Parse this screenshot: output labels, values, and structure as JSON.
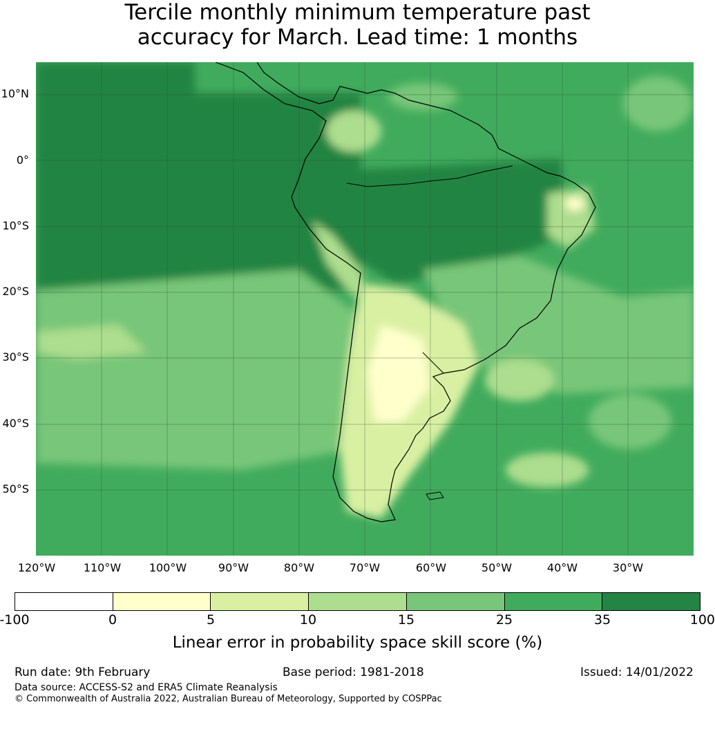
{
  "title": {
    "line1": "Tercile monthly minimum temperature past",
    "line2": "accuracy for March. Lead time: 1 months"
  },
  "map": {
    "lat_labels": [
      "10°N",
      "0°",
      "10°S",
      "20°S",
      "30°S",
      "40°S",
      "50°S"
    ],
    "lon_labels": [
      "120°W",
      "110°W",
      "100°W",
      "90°W",
      "80°W",
      "70°W",
      "60°W",
      "50°W",
      "40°W",
      "30°W"
    ]
  },
  "colorbar": {
    "title": "Linear error in probability space skill score (%)",
    "ticks": [
      "-100",
      "0",
      "5",
      "10",
      "15",
      "25",
      "35",
      "100"
    ],
    "colors": [
      "#ffffff",
      "#ffffcc",
      "#d9f0a3",
      "#addd8e",
      "#78c679",
      "#41ab5d",
      "#238443"
    ]
  },
  "footer": {
    "run_date": "Run date: 9th February",
    "base_period": "Base period: 1981-2018",
    "issued": "Issued: 14/01/2022",
    "data_source": "Data source: ACCESS-S2 and ERA5 Climate Reanalysis",
    "copyright": "© Commonwealth of Australia 2022, Australian Bureau of Meteorology, Supported by COSPPac"
  }
}
